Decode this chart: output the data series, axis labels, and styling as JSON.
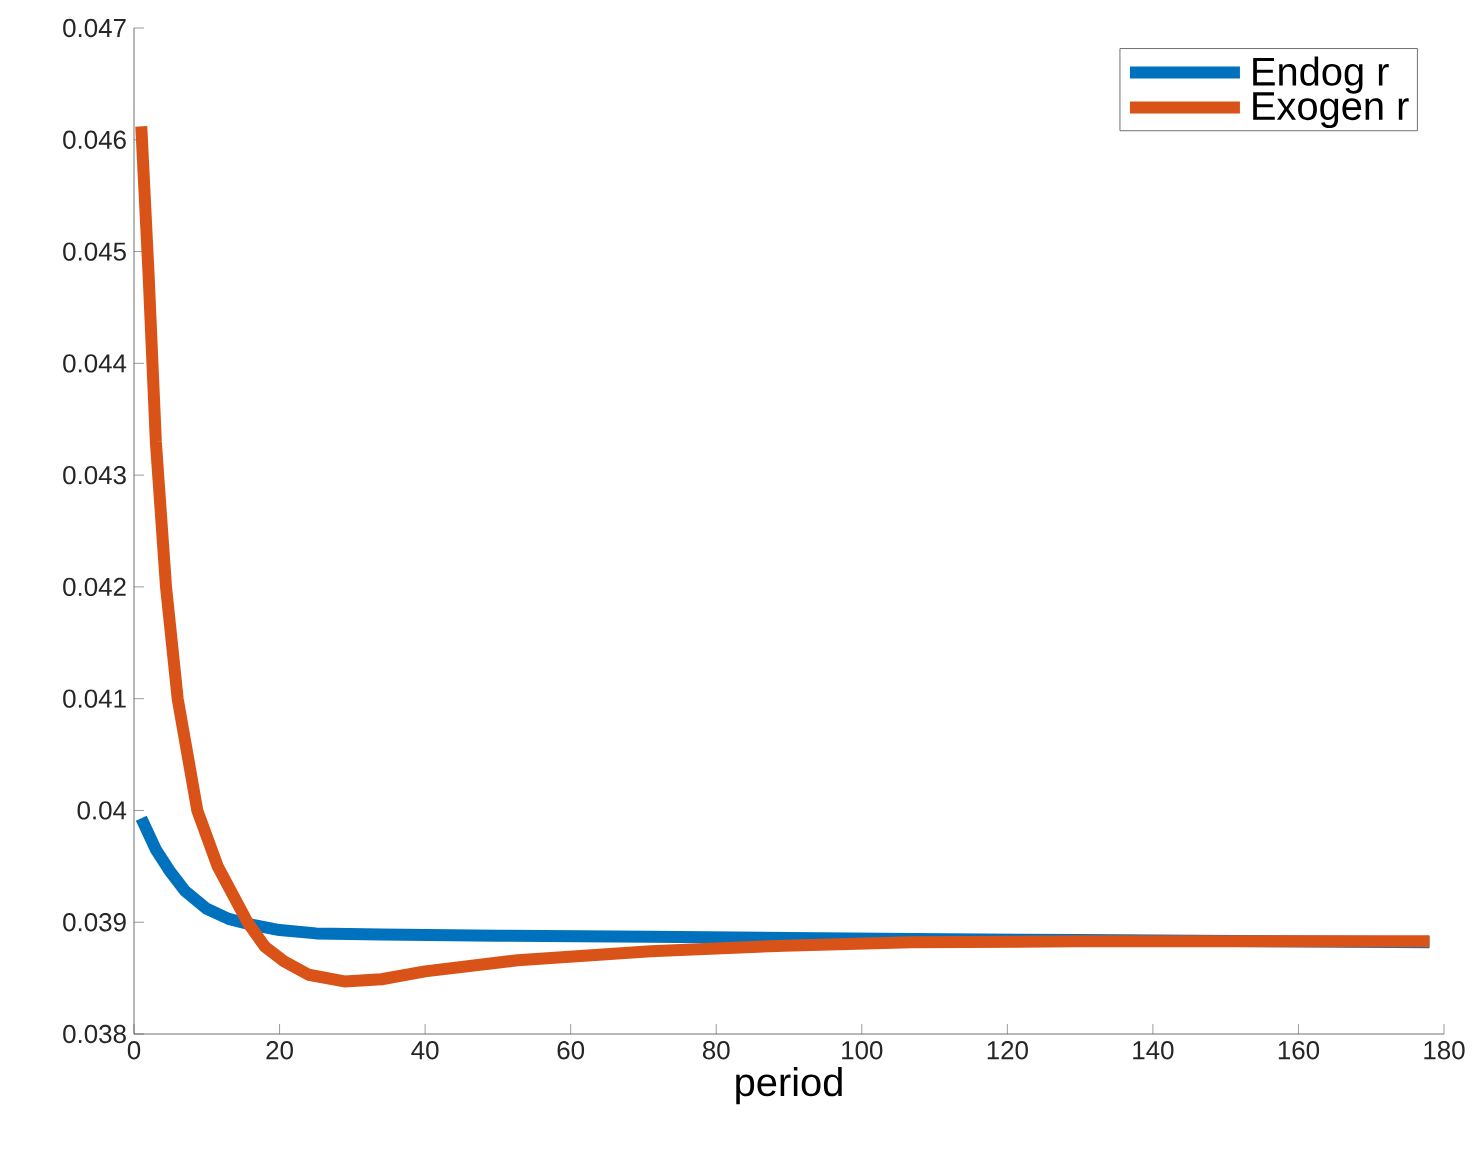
{
  "chart_data": {
    "type": "line",
    "xlabel": "period",
    "legend": "top right",
    "grid": false,
    "xlim": [
      0,
      180
    ],
    "xticks": [
      0,
      20,
      40,
      60,
      80,
      100,
      120,
      140,
      160,
      180
    ],
    "ylim": [
      0.038,
      0.047
    ],
    "yticks": [
      0.038,
      0.039,
      0.04,
      0.041,
      0.042,
      0.043,
      0.044,
      0.045,
      0.046,
      0.047
    ],
    "series": [
      {
        "name": "Endog r",
        "color": "#0072bd",
        "x": [
          1,
          3,
          5,
          7,
          10,
          13,
          16,
          20,
          25,
          34,
          50,
          71,
          90,
          107,
          130,
          155,
          178
        ],
        "values": [
          0.03993,
          0.03965,
          0.03945,
          0.03928,
          0.03912,
          0.03903,
          0.03898,
          0.03893,
          0.0389,
          0.03889,
          0.03888,
          0.03887,
          0.03886,
          0.03885,
          0.03884,
          null,
          0.03882
        ]
      },
      {
        "name": "Exogen r",
        "color": "#d95319",
        "x": [
          1,
          2,
          3,
          4.4,
          6,
          8.7,
          11.5,
          15.6,
          18,
          20.6,
          24,
          28.9,
          34,
          40,
          52.7,
          71,
          89.3,
          106.8,
          130,
          155,
          178
        ],
        "values": [
          0.04612,
          0.0448,
          0.0433,
          0.042,
          0.041,
          0.04,
          0.0395,
          0.039,
          0.03878,
          0.03865,
          0.03853,
          0.03847,
          0.03849,
          0.03856,
          0.03866,
          0.03874,
          0.03879,
          0.03882,
          0.03883,
          0.03883,
          0.03883
        ]
      }
    ]
  }
}
